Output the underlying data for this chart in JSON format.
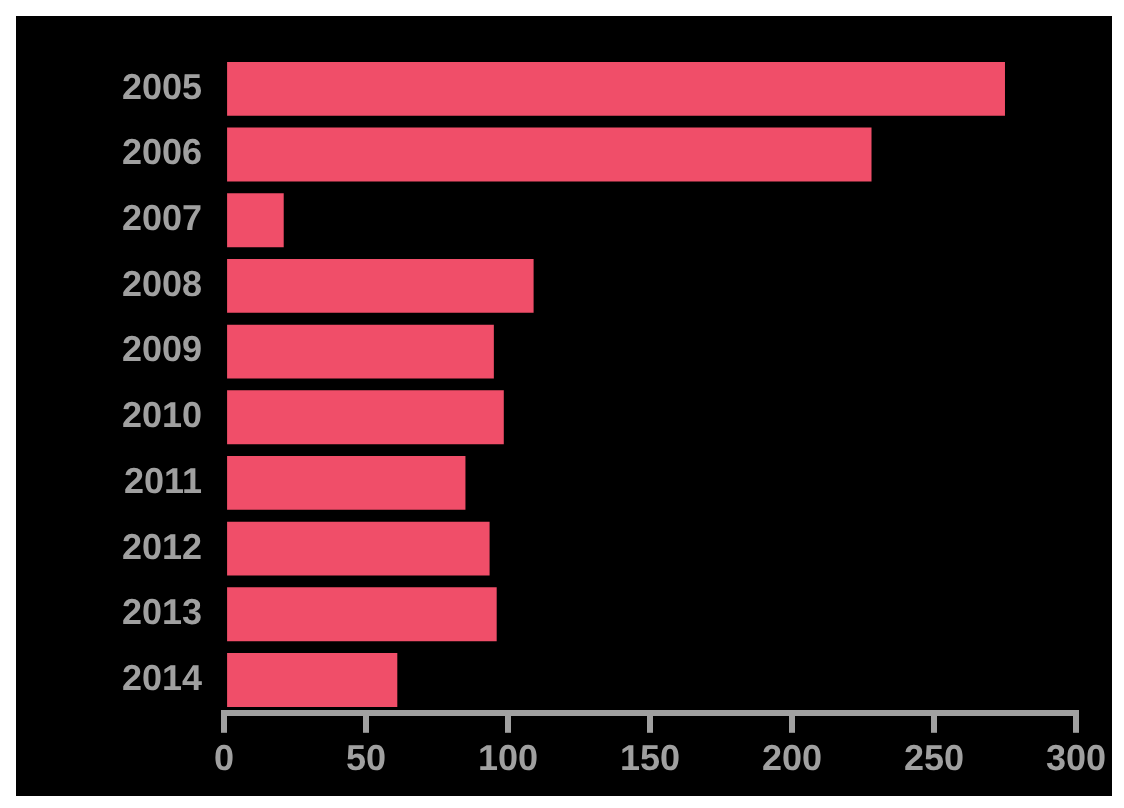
{
  "chart_data": {
    "type": "bar",
    "orientation": "horizontal",
    "categories": [
      "2005",
      "2006",
      "2007",
      "2008",
      "2009",
      "2010",
      "2011",
      "2012",
      "2013",
      "2014"
    ],
    "values": [
      275,
      228,
      21,
      109,
      95,
      98.5,
      85,
      93.5,
      96,
      61
    ],
    "color": "#f04e69",
    "xlim": [
      0,
      300
    ],
    "xticks": [
      0,
      50,
      100,
      150,
      200,
      250,
      300
    ],
    "grid": false,
    "legend": false
  }
}
